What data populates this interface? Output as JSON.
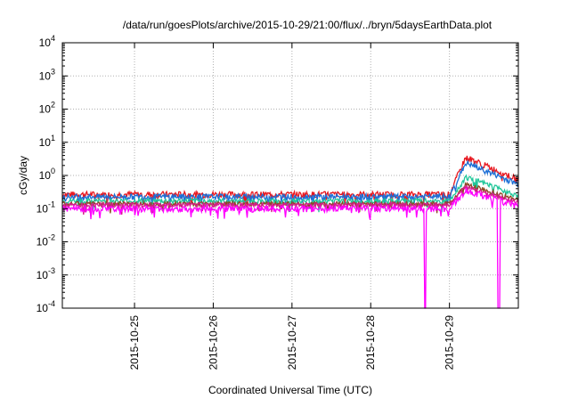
{
  "chart_data": {
    "type": "line",
    "title": "/data/run/goesPlots/archive/2015-10-29/21:00/flux/../bryn/5daysEarthData.plot",
    "xlabel": "Coordinated Universal Time (UTC)",
    "ylabel": "cGy/day",
    "yscale": "log",
    "ylim": [
      0.0001,
      10000
    ],
    "xlim": [
      "2015-10-24 02:00",
      "2015-10-29 21:00"
    ],
    "grid": true,
    "x_ticks": [
      "2015-10-25",
      "2015-10-26",
      "2015-10-27",
      "2015-10-28",
      "2015-10-29"
    ],
    "y_ticks": [
      {
        "value": 0.0001,
        "base": "10",
        "exp": "-4"
      },
      {
        "value": 0.001,
        "base": "10",
        "exp": "-3"
      },
      {
        "value": 0.01,
        "base": "10",
        "exp": "-2"
      },
      {
        "value": 0.1,
        "base": "10",
        "exp": "-1"
      },
      {
        "value": 1,
        "base": "10",
        "exp": "0"
      },
      {
        "value": 10,
        "base": "10",
        "exp": "1"
      },
      {
        "value": 100,
        "base": "10",
        "exp": "2"
      },
      {
        "value": 1000,
        "base": "10",
        "exp": "3"
      },
      {
        "value": 10000,
        "base": "10",
        "exp": "4"
      }
    ],
    "series": [
      {
        "color": "#e8171f",
        "baseline": 0.27,
        "peak": 3.6,
        "end": 0.75,
        "noise": 0.22
      },
      {
        "color": "#1c6fd6",
        "baseline": 0.23,
        "peak": 2.4,
        "end": 0.55,
        "noise": 0.2
      },
      {
        "color": "#1fc79a",
        "baseline": 0.17,
        "peak": 0.9,
        "end": 0.25,
        "noise": 0.18
      },
      {
        "color": "#8b4a22",
        "baseline": 0.14,
        "peak": 0.55,
        "end": 0.18,
        "noise": 0.16
      },
      {
        "color": "#d61c8b",
        "baseline": 0.13,
        "peak": 0.45,
        "end": 0.15,
        "noise": 0.16
      },
      {
        "color": "#ff00ff",
        "baseline": 0.1,
        "peak": 0.35,
        "end": 0.12,
        "noise": 0.22,
        "dips": [
          "2015-10-28 16:30",
          "2015-10-29 15:00",
          "2015-10-29 15:15"
        ]
      }
    ]
  }
}
